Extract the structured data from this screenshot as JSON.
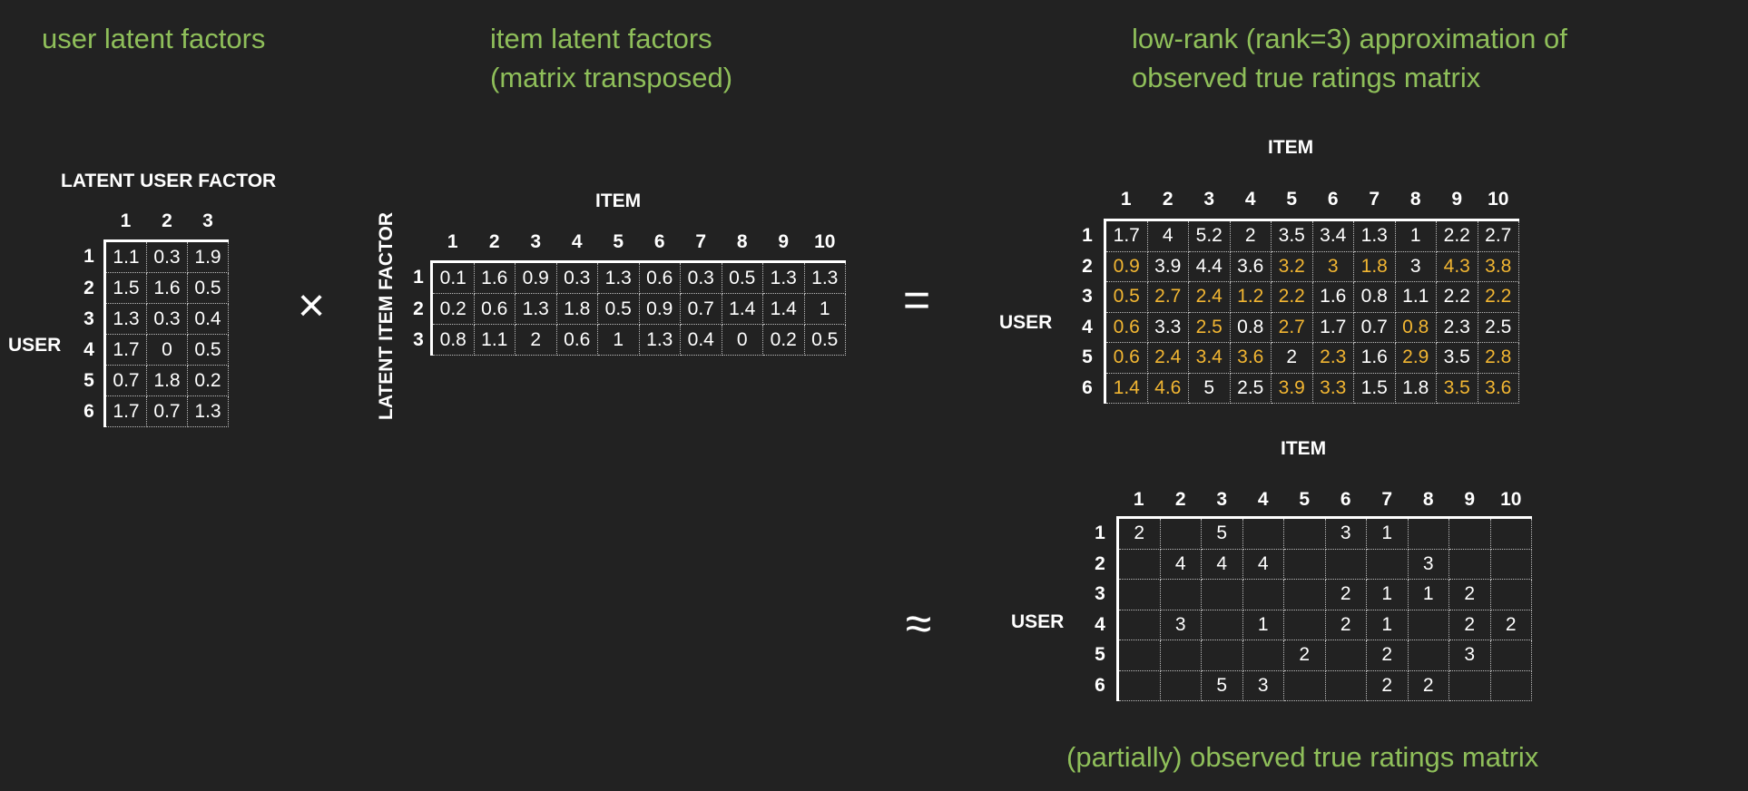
{
  "titles": {
    "user_factors": "user latent factors",
    "item_factors_line1": "item latent factors",
    "item_factors_line2": "(matrix transposed)",
    "approx_line1": "low-rank (rank=3) approximation of",
    "approx_line2": "observed true ratings matrix",
    "observed": "(partially) observed true ratings matrix"
  },
  "operators": {
    "times": "×",
    "equals": "=",
    "approx": "≈"
  },
  "colors": {
    "title_green": "#8fbf5a",
    "highlight_orange": "#f2b632",
    "background": "#222222"
  },
  "user_matrix": {
    "title": "LATENT USER FACTOR",
    "row_axis": "USER",
    "cols": [
      "1",
      "2",
      "3"
    ],
    "rows": [
      "1",
      "2",
      "3",
      "4",
      "5",
      "6"
    ],
    "values": [
      [
        "1.1",
        "0.3",
        "1.9"
      ],
      [
        "1.5",
        "1.6",
        "0.5"
      ],
      [
        "1.3",
        "0.3",
        "0.4"
      ],
      [
        "1.7",
        "0",
        "0.5"
      ],
      [
        "0.7",
        "1.8",
        "0.2"
      ],
      [
        "1.7",
        "0.7",
        "1.3"
      ]
    ]
  },
  "item_matrix": {
    "title": "ITEM",
    "row_axis": "LATENT ITEM FACTOR",
    "cols": [
      "1",
      "2",
      "3",
      "4",
      "5",
      "6",
      "7",
      "8",
      "9",
      "10"
    ],
    "rows": [
      "1",
      "2",
      "3"
    ],
    "values": [
      [
        "0.1",
        "1.6",
        "0.9",
        "0.3",
        "1.3",
        "0.6",
        "0.3",
        "0.5",
        "1.3",
        "1.3"
      ],
      [
        "0.2",
        "0.6",
        "1.3",
        "1.8",
        "0.5",
        "0.9",
        "0.7",
        "1.4",
        "1.4",
        "1"
      ],
      [
        "0.8",
        "1.1",
        "2",
        "0.6",
        "1",
        "1.3",
        "0.4",
        "0",
        "0.2",
        "0.5"
      ]
    ]
  },
  "approx_matrix": {
    "title": "ITEM",
    "row_axis": "USER",
    "cols": [
      "1",
      "2",
      "3",
      "4",
      "5",
      "6",
      "7",
      "8",
      "9",
      "10"
    ],
    "rows": [
      "1",
      "2",
      "3",
      "4",
      "5",
      "6"
    ],
    "values": [
      [
        "1.7",
        "4",
        "5.2",
        "2",
        "3.5",
        "3.4",
        "1.3",
        "1",
        "2.2",
        "2.7"
      ],
      [
        "0.9",
        "3.9",
        "4.4",
        "3.6",
        "3.2",
        "3",
        "1.8",
        "3",
        "4.3",
        "3.8"
      ],
      [
        "0.5",
        "2.7",
        "2.4",
        "1.2",
        "2.2",
        "1.6",
        "0.8",
        "1.1",
        "2.2",
        "2.2"
      ],
      [
        "0.6",
        "3.3",
        "2.5",
        "0.8",
        "2.7",
        "1.7",
        "0.7",
        "0.8",
        "2.3",
        "2.5"
      ],
      [
        "0.6",
        "2.4",
        "3.4",
        "3.6",
        "2",
        "2.3",
        "1.6",
        "2.9",
        "3.5",
        "2.8"
      ],
      [
        "1.4",
        "4.6",
        "5",
        "2.5",
        "3.9",
        "3.3",
        "1.5",
        "1.8",
        "3.5",
        "3.6"
      ]
    ],
    "highlighted": [
      [
        0,
        0,
        0,
        0,
        0,
        0,
        0,
        0,
        0,
        0
      ],
      [
        1,
        0,
        0,
        0,
        1,
        1,
        1,
        0,
        1,
        1
      ],
      [
        1,
        1,
        1,
        1,
        1,
        0,
        0,
        0,
        0,
        1
      ],
      [
        1,
        0,
        1,
        0,
        1,
        0,
        0,
        1,
        0,
        0
      ],
      [
        1,
        1,
        1,
        1,
        0,
        1,
        0,
        1,
        0,
        1
      ],
      [
        1,
        1,
        0,
        0,
        1,
        1,
        0,
        0,
        1,
        1
      ]
    ]
  },
  "observed_matrix": {
    "title": "ITEM",
    "row_axis": "USER",
    "cols": [
      "1",
      "2",
      "3",
      "4",
      "5",
      "6",
      "7",
      "8",
      "9",
      "10"
    ],
    "rows": [
      "1",
      "2",
      "3",
      "4",
      "5",
      "6"
    ],
    "values": [
      [
        "2",
        "",
        "5",
        "",
        "",
        "3",
        "1",
        "",
        "",
        ""
      ],
      [
        "",
        "4",
        "4",
        "4",
        "",
        "",
        "",
        "3",
        "",
        ""
      ],
      [
        "",
        "",
        "",
        "",
        "",
        "2",
        "1",
        "1",
        "2",
        ""
      ],
      [
        "",
        "3",
        "",
        "1",
        "",
        "2",
        "1",
        "",
        "2",
        "2"
      ],
      [
        "",
        "",
        "",
        "",
        "2",
        "",
        "2",
        "",
        "3",
        ""
      ],
      [
        "",
        "",
        "5",
        "3",
        "",
        "",
        "2",
        "2",
        "",
        ""
      ]
    ]
  }
}
